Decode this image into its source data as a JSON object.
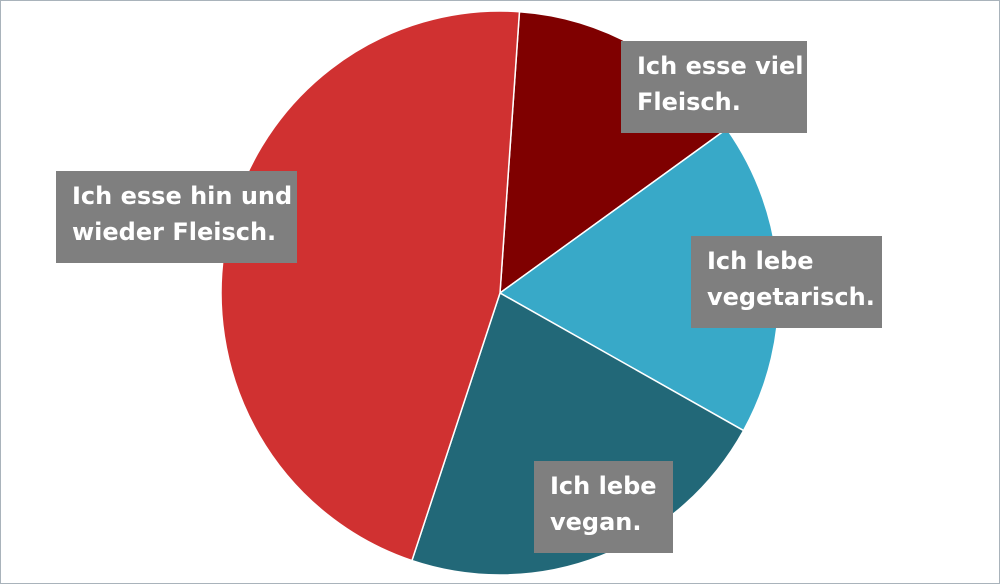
{
  "chart_data": {
    "type": "pie",
    "title": "",
    "slices": [
      {
        "label": "Ich esse viel Fleisch.",
        "lines": [
          "Ich esse viel",
          "Fleisch."
        ],
        "value": 14,
        "color": "#7f0000"
      },
      {
        "label": "Ich lebe vegetarisch.",
        "lines": [
          "Ich lebe",
          "vegetarisch."
        ],
        "value": 18,
        "color": "#38a9c8"
      },
      {
        "label": "Ich lebe vegan.",
        "lines": [
          "Ich lebe",
          "vegan."
        ],
        "value": 22,
        "color": "#226878"
      },
      {
        "label": "Ich esse hin und wieder Fleisch.",
        "lines": [
          "Ich esse hin und",
          "wieder Fleisch."
        ],
        "value": 46,
        "color": "#d03131"
      }
    ],
    "start_angle_deg": 4,
    "direction": "clockwise",
    "legend": "none",
    "label_style": {
      "background": "#7f7f7f",
      "text_color": "#ffffff"
    }
  }
}
